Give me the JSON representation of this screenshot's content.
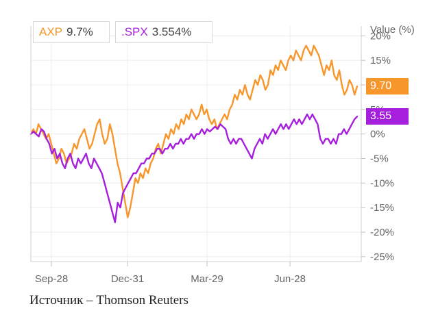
{
  "chart_data": {
    "type": "line",
    "ylabel": "Value (%)",
    "ylim": [
      -26,
      22
    ],
    "y_ticks": [
      "20%",
      "15%",
      "10%",
      "5%",
      "0%",
      "-5%",
      "-10%",
      "-15%",
      "-20%",
      "-25%"
    ],
    "x_ticks": [
      "Sep-28",
      "Dec-31",
      "Mar-29",
      "Jun-28"
    ],
    "grid": true,
    "legend_position": "top-left",
    "series": [
      {
        "name": "AXP",
        "legend_value": "9.7%",
        "last_label": "9.70",
        "color": "#f7962b",
        "values": [
          0,
          1,
          0,
          2,
          1,
          0,
          -1,
          0,
          -2,
          -4,
          -6,
          -5,
          -3,
          -4,
          -6,
          -5,
          -4,
          -2,
          -3,
          -1,
          0,
          1,
          -1,
          -3,
          -2,
          0,
          2,
          3,
          0,
          -2,
          -1,
          2,
          0,
          -3,
          -6,
          -8,
          -11,
          -14,
          -17,
          -15,
          -12,
          -9,
          -10,
          -8,
          -9,
          -7,
          -8,
          -6,
          -5,
          -3,
          -2,
          -4,
          -2,
          0,
          -1,
          1,
          0,
          2,
          1,
          3,
          2,
          4,
          3,
          5,
          4,
          3,
          4,
          6,
          4,
          5,
          3,
          2,
          3,
          1,
          2,
          3,
          4,
          3,
          5,
          6,
          8,
          7,
          9,
          8,
          10,
          8,
          7,
          9,
          11,
          10,
          12,
          11,
          9,
          10,
          13,
          12,
          14,
          13,
          15,
          14,
          13,
          15,
          16,
          15,
          17,
          16,
          15,
          17,
          18,
          17,
          16,
          18,
          17,
          16,
          14,
          12,
          14,
          13,
          15,
          12,
          11,
          13,
          10,
          8,
          9,
          11,
          10,
          8,
          9.7
        ]
      },
      {
        "name": ".SPX",
        "legend_value": "3.554%",
        "last_label": "3.55",
        "color": "#a51fdc",
        "values": [
          0,
          0.5,
          0,
          -0.5,
          1,
          0.5,
          -1,
          -2,
          -4,
          -3,
          -5,
          -4,
          -6,
          -7,
          -5,
          -4,
          -6,
          -7,
          -5,
          -6,
          -5,
          -4,
          -6,
          -7,
          -5,
          -6,
          -7,
          -8,
          -10,
          -12,
          -14,
          -16,
          -18,
          -14,
          -15,
          -12,
          -11,
          -10,
          -9,
          -8,
          -8,
          -7,
          -6,
          -6,
          -5,
          -5,
          -4,
          -4,
          -3,
          -3,
          -4,
          -3,
          -3,
          -2,
          -3,
          -2,
          -2,
          -1,
          -2,
          -1,
          -1,
          0,
          -1,
          0,
          0,
          1,
          0,
          1,
          0.5,
          1,
          1.5,
          1,
          2,
          1.5,
          1,
          -1,
          -2,
          -1,
          -2,
          -1,
          -1,
          -2,
          -3,
          -4,
          -5,
          -3,
          -2,
          -1,
          -2,
          0,
          -1,
          0,
          1,
          0,
          1,
          2,
          1,
          2,
          1,
          2,
          3,
          2,
          3,
          2,
          3,
          4,
          3,
          4,
          3,
          2,
          -1,
          -2,
          -1,
          -1,
          -2,
          -1,
          -2,
          0,
          0,
          1,
          0,
          1,
          2,
          3,
          3.554
        ]
      }
    ]
  },
  "source_text": "Источник – Thomson Reuters"
}
